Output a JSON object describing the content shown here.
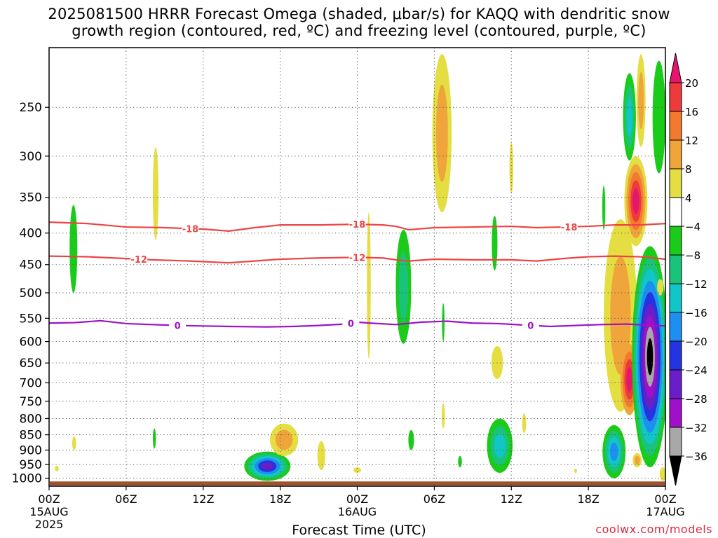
{
  "header": {
    "title_line1": "2025081500 HRRR Forecast Omega (shaded, μbar/s) for KAQQ with dendritic snow",
    "title_line2": "growth region (contoured, red, ºC) and freezing level (contoured, purple, ºC)"
  },
  "footer": {
    "xlabel": "Forecast Time (UTC)",
    "credit": "coolwx.com/models"
  },
  "chart_data": {
    "type": "heatmap",
    "x_axis": {
      "range_hours": [
        0,
        48
      ],
      "ticks": [
        {
          "hour": 0,
          "label": "00Z",
          "sub1": "15AUG",
          "sub2": "2025"
        },
        {
          "hour": 6,
          "label": "06Z",
          "sub1": "",
          "sub2": ""
        },
        {
          "hour": 12,
          "label": "12Z",
          "sub1": "",
          "sub2": ""
        },
        {
          "hour": 18,
          "label": "18Z",
          "sub1": "",
          "sub2": ""
        },
        {
          "hour": 24,
          "label": "00Z",
          "sub1": "16AUG",
          "sub2": ""
        },
        {
          "hour": 30,
          "label": "06Z",
          "sub1": "",
          "sub2": ""
        },
        {
          "hour": 36,
          "label": "12Z",
          "sub1": "",
          "sub2": ""
        },
        {
          "hour": 42,
          "label": "18Z",
          "sub1": "",
          "sub2": ""
        },
        {
          "hour": 48,
          "label": "00Z",
          "sub1": "17AUG",
          "sub2": ""
        }
      ]
    },
    "y_axis": {
      "unit": "hPa",
      "log_pressure": true,
      "range": [
        1030,
        200
      ],
      "ticks": [
        250,
        300,
        350,
        400,
        450,
        500,
        550,
        600,
        650,
        700,
        750,
        800,
        850,
        900,
        950,
        1000
      ]
    },
    "colorbar": {
      "ticks": [
        "20",
        "16",
        "12",
        "8",
        "4",
        "−4",
        "−8",
        "−12",
        "−16",
        "−20",
        "−24",
        "−28",
        "−32",
        "−36"
      ],
      "bins_top_to_bottom": [
        {
          "range": ">20",
          "color": "#e8156f"
        },
        {
          "range": "16 to 20",
          "color": "#ee3a3a"
        },
        {
          "range": "12 to 16",
          "color": "#f27a2e"
        },
        {
          "range": "8 to 12",
          "color": "#f0a53a"
        },
        {
          "range": "4 to 8",
          "color": "#e4de43"
        },
        {
          "range": "-4 to 4",
          "color": "#ffffff"
        },
        {
          "range": "-8 to -4",
          "color": "#1acb1a"
        },
        {
          "range": "-12 to -8",
          "color": "#19c47a"
        },
        {
          "range": "-16 to -12",
          "color": "#11c6c8"
        },
        {
          "range": "-20 to -16",
          "color": "#1c8ff0"
        },
        {
          "range": "-24 to -20",
          "color": "#2434e0"
        },
        {
          "range": "-28 to -24",
          "color": "#6a1ec8"
        },
        {
          "range": "-32 to -28",
          "color": "#a010c8"
        },
        {
          "range": "-36 to -32",
          "color": "#a8a8a8"
        },
        {
          "range": "<-36",
          "color": "#000000"
        }
      ]
    },
    "contours": [
      {
        "name": "-18",
        "color": "#ee4444",
        "label_hours": [
          11,
          24,
          40.5
        ],
        "points": [
          [
            0,
            384
          ],
          [
            3,
            386
          ],
          [
            6,
            391
          ],
          [
            9,
            392
          ],
          [
            12,
            394
          ],
          [
            14,
            397
          ],
          [
            16,
            392
          ],
          [
            18,
            388
          ],
          [
            21,
            388
          ],
          [
            24,
            387
          ],
          [
            26,
            388
          ],
          [
            27,
            390
          ],
          [
            28,
            395
          ],
          [
            30,
            392
          ],
          [
            33,
            391
          ],
          [
            36,
            390
          ],
          [
            38,
            392
          ],
          [
            40,
            391
          ],
          [
            42,
            390
          ],
          [
            44,
            388
          ],
          [
            46,
            388
          ],
          [
            48,
            386
          ]
        ]
      },
      {
        "name": "-12",
        "color": "#ee4444",
        "label_hours": [
          7,
          24,
          24.1
        ],
        "points": [
          [
            0,
            436
          ],
          [
            3,
            437
          ],
          [
            6,
            440
          ],
          [
            8,
            442
          ],
          [
            11,
            444
          ],
          [
            14,
            447
          ],
          [
            16,
            444
          ],
          [
            18,
            441
          ],
          [
            21,
            439
          ],
          [
            24,
            438
          ],
          [
            26,
            439
          ],
          [
            27,
            442
          ],
          [
            28,
            444
          ],
          [
            30,
            441
          ],
          [
            33,
            442
          ],
          [
            36,
            442
          ],
          [
            38,
            444
          ],
          [
            40,
            440
          ],
          [
            42,
            437
          ],
          [
            44,
            436
          ],
          [
            46,
            437
          ],
          [
            48,
            441
          ]
        ]
      },
      {
        "name": "0",
        "color": "#a010c8",
        "label_hours": [
          10,
          23.5,
          37.5
        ],
        "points": [
          [
            0,
            560
          ],
          [
            2,
            559
          ],
          [
            4,
            555
          ],
          [
            6,
            561
          ],
          [
            8,
            563
          ],
          [
            10,
            565
          ],
          [
            12,
            566
          ],
          [
            14,
            567
          ],
          [
            17,
            568
          ],
          [
            19,
            567
          ],
          [
            21,
            565
          ],
          [
            23,
            562
          ],
          [
            24,
            558
          ],
          [
            25,
            560
          ],
          [
            27,
            563
          ],
          [
            29,
            558
          ],
          [
            31,
            556
          ],
          [
            33,
            560
          ],
          [
            35,
            561
          ],
          [
            37,
            564
          ],
          [
            39,
            567
          ],
          [
            41,
            565
          ],
          [
            43,
            563
          ],
          [
            45,
            562
          ],
          [
            48,
            566
          ]
        ]
      }
    ],
    "blobs": [
      {
        "h": 1.9,
        "p": [
          360,
          500
        ],
        "w": 0.3,
        "bins": [
          "-8 to -4"
        ]
      },
      {
        "h": 1.95,
        "p": [
          855,
          900
        ],
        "w": 0.15,
        "bins": [
          "4 to 8"
        ]
      },
      {
        "h": 8.3,
        "p": [
          290,
          410
        ],
        "w": 0.22,
        "bins": [
          "4 to 8"
        ]
      },
      {
        "h": 8.2,
        "p": [
          830,
          895
        ],
        "w": 0.12,
        "bins": [
          "-8 to -4"
        ]
      },
      {
        "h": 0.6,
        "p": [
          955,
          975
        ],
        "w": 0.15,
        "bins": [
          "4 to 8"
        ]
      },
      {
        "h": 17.0,
        "p": [
          905,
          1010
        ],
        "w": 1.8,
        "bins": [
          "-8 to -4",
          "-12 to -8",
          "-16 to -12",
          "-20 to -16",
          "-24 to -20",
          "-28 to -24"
        ]
      },
      {
        "h": 18.3,
        "p": [
          815,
          920
        ],
        "w": 1.1,
        "bins": [
          "4 to 8",
          "8 to 12"
        ]
      },
      {
        "h": 21.2,
        "p": [
          870,
          970
        ],
        "w": 0.3,
        "bins": [
          "4 to 8"
        ]
      },
      {
        "h": 24.0,
        "p": [
          960,
          980
        ],
        "w": 0.3,
        "bins": [
          "4 to 8"
        ]
      },
      {
        "h": 24.9,
        "p": [
          370,
          640
        ],
        "w": 0.15,
        "bins": [
          "4 to 8"
        ]
      },
      {
        "h": 27.6,
        "p": [
          395,
          605
        ],
        "w": 0.6,
        "bins": [
          "-8 to -4",
          "-12 to -8"
        ]
      },
      {
        "h": 28.2,
        "p": [
          835,
          900
        ],
        "w": 0.22,
        "bins": [
          "-8 to -4"
        ]
      },
      {
        "h": 30.6,
        "p": [
          205,
          370
        ],
        "w": 0.75,
        "bins": [
          "4 to 8",
          "8 to 12"
        ]
      },
      {
        "h": 30.7,
        "p": [
          755,
          830
        ],
        "w": 0.12,
        "bins": [
          "4 to 8"
        ]
      },
      {
        "h": 30.7,
        "p": [
          520,
          600
        ],
        "w": 0.1,
        "bins": [
          "-8 to -4"
        ]
      },
      {
        "h": 32.0,
        "p": [
          920,
          960
        ],
        "w": 0.15,
        "bins": [
          "-8 to -4"
        ]
      },
      {
        "h": 34.7,
        "p": [
          375,
          460
        ],
        "w": 0.22,
        "bins": [
          "-8 to -4"
        ]
      },
      {
        "h": 34.9,
        "p": [
          610,
          690
        ],
        "w": 0.45,
        "bins": [
          "4 to 8"
        ]
      },
      {
        "h": 35.1,
        "p": [
          800,
          980
        ],
        "w": 1.0,
        "bins": [
          "-8 to -4",
          "-12 to -8",
          "-16 to -12"
        ]
      },
      {
        "h": 36.0,
        "p": [
          285,
          345
        ],
        "w": 0.15,
        "bins": [
          "4 to 8"
        ]
      },
      {
        "h": 37.0,
        "p": [
          785,
          845
        ],
        "w": 0.15,
        "bins": [
          "4 to 8"
        ]
      },
      {
        "h": 41.0,
        "p": [
          965,
          980
        ],
        "w": 0.12,
        "bins": [
          "4 to 8"
        ]
      },
      {
        "h": 43.2,
        "p": [
          335,
          395
        ],
        "w": 0.12,
        "bins": [
          "-8 to -4"
        ]
      },
      {
        "h": 44.0,
        "p": [
          820,
          1000
        ],
        "w": 0.9,
        "bins": [
          "-8 to -4",
          "-12 to -8",
          "-16 to -12",
          "-20 to -16"
        ]
      },
      {
        "h": 44.5,
        "p": [
          380,
          780
        ],
        "w": 1.3,
        "bins": [
          "4 to 8",
          "8 to 12"
        ]
      },
      {
        "h": 45.7,
        "p": [
          300,
          420
        ],
        "w": 0.9,
        "bins": [
          "4 to 8",
          "8 to 12",
          "12 to 16",
          "16 to 20",
          ">20"
        ]
      },
      {
        "h": 45.2,
        "p": [
          605,
          790
        ],
        "w": 0.7,
        "bins": [
          "8 to 12",
          "12 to 16",
          "16 to 20",
          ">20"
        ]
      },
      {
        "h": 45.2,
        "p": [
          220,
          305
        ],
        "w": 0.5,
        "bins": [
          "-8 to -4",
          "-12 to -8",
          "-16 to -12"
        ]
      },
      {
        "h": 46.1,
        "p": [
          205,
          290
        ],
        "w": 0.35,
        "bins": [
          "4 to 8",
          "8 to 12"
        ]
      },
      {
        "h": 46.8,
        "p": [
          420,
          960
        ],
        "w": 1.4,
        "bins": [
          "-8 to -4",
          "-12 to -8",
          "-16 to -12",
          "-20 to -16",
          "-24 to -20",
          "-28 to -24",
          "-32 to -28",
          "-36 to -32",
          "<-36"
        ]
      },
      {
        "h": 45.8,
        "p": [
          910,
          960
        ],
        "w": 0.35,
        "bins": [
          "4 to 8",
          "8 to 12"
        ]
      },
      {
        "h": 47.5,
        "p": [
          210,
          320
        ],
        "w": 0.5,
        "bins": [
          "-8 to -4"
        ]
      },
      {
        "h": 47.6,
        "p": [
          475,
          505
        ],
        "w": 0.25,
        "bins": [
          "4 to 8"
        ]
      },
      {
        "h": 47.8,
        "p": [
          960,
          1010
        ],
        "w": 0.25,
        "bins": [
          "4 to 8"
        ]
      }
    ],
    "terrain": {
      "color": "#a0522d",
      "label": ""
    }
  }
}
